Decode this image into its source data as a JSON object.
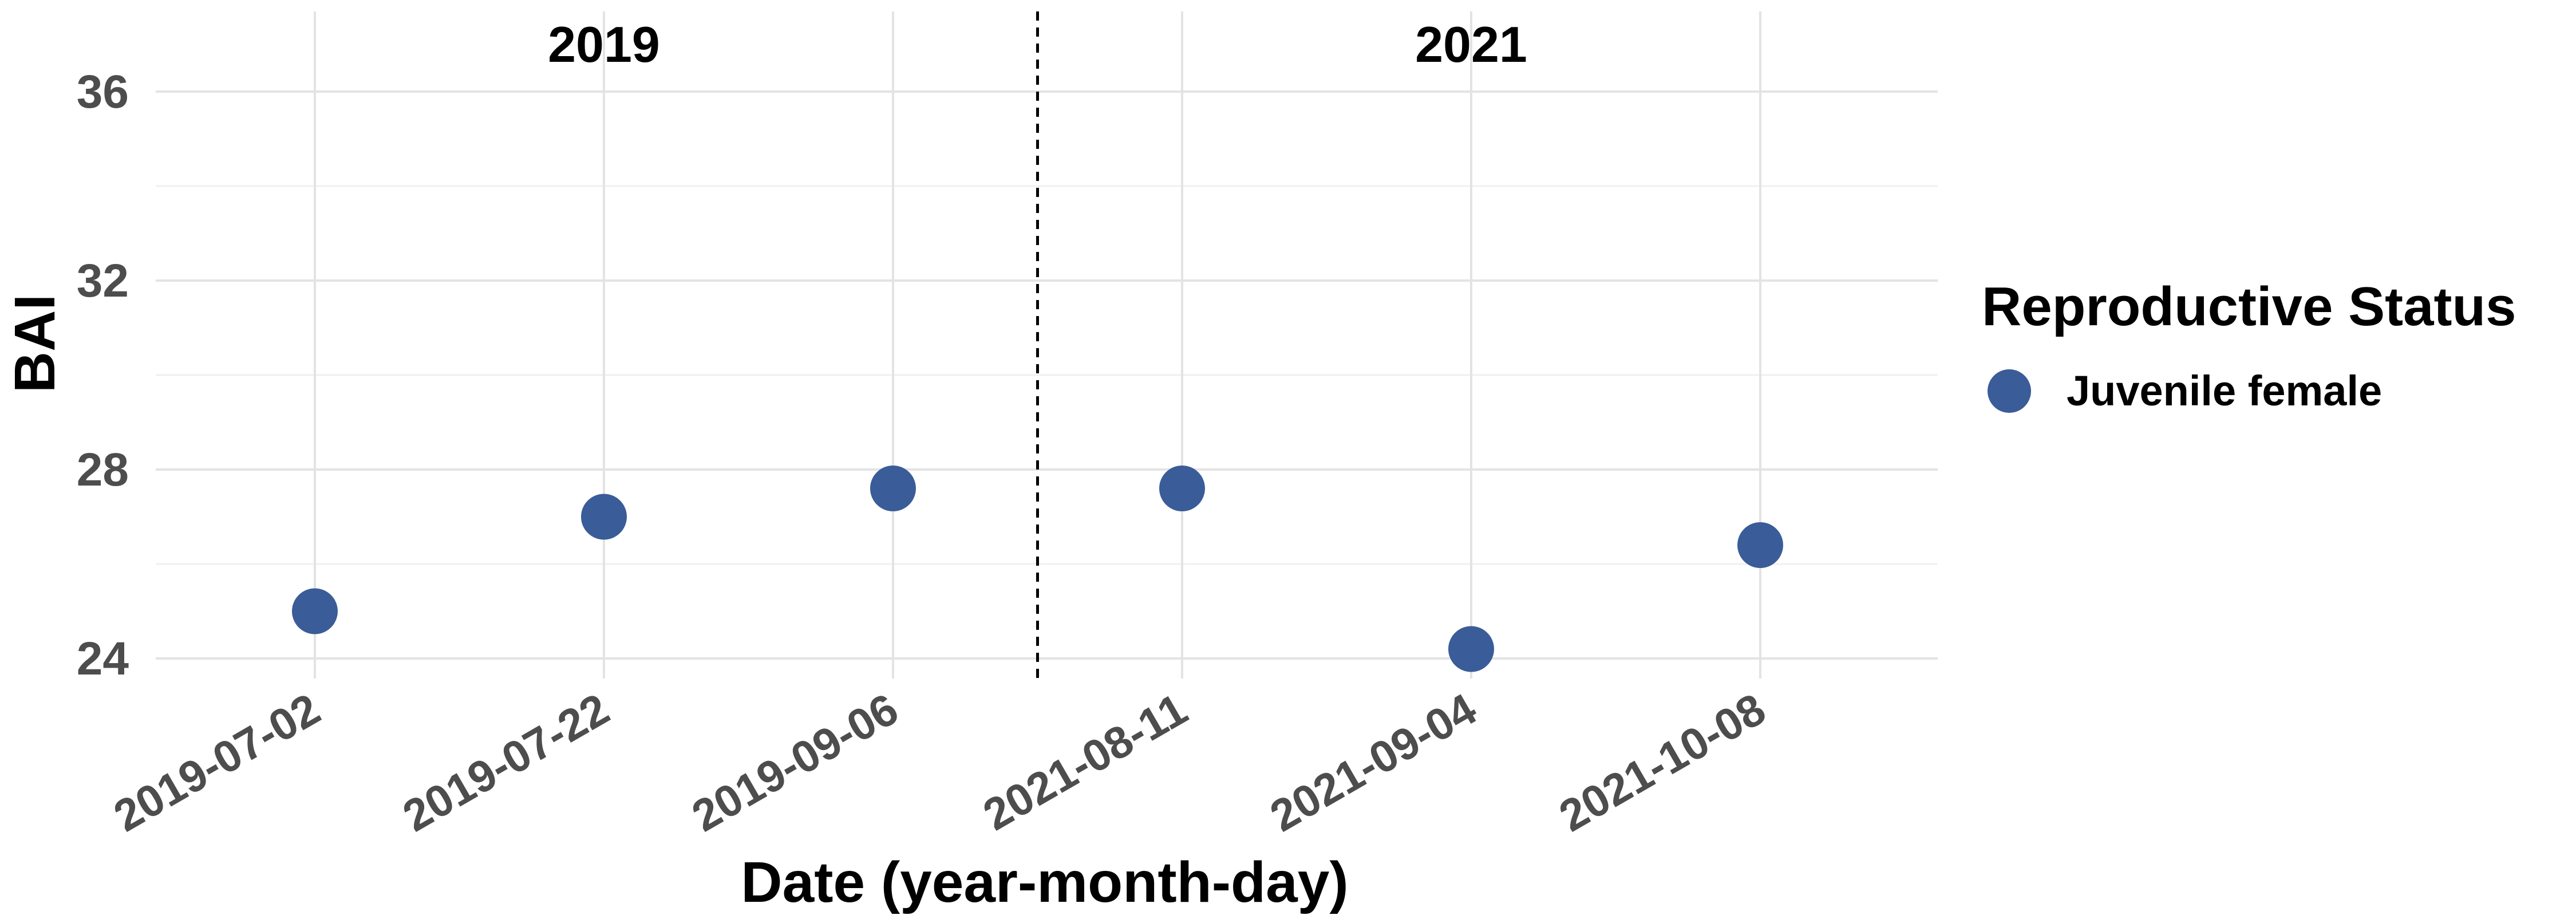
{
  "chart_data": {
    "type": "scatter",
    "title": "",
    "xlabel": "Date (year-month-day)",
    "ylabel": "BAI",
    "categories": [
      "2019-07-02",
      "2019-07-22",
      "2019-09-06",
      "2021-08-11",
      "2021-09-04",
      "2021-10-08"
    ],
    "panels": [
      "2019",
      "2021"
    ],
    "series": [
      {
        "name": "Juvenile female",
        "color": "#3a5c98",
        "values": [
          25.0,
          27.0,
          27.6,
          27.6,
          24.2,
          26.4
        ]
      }
    ],
    "ylim": [
      23.6,
      37.0
    ],
    "yticks": [
      24,
      28,
      32,
      36
    ],
    "legend": {
      "title": "Reproductive Status",
      "position": "right"
    },
    "grid": true,
    "divider": "dashed vertical line between 2019-09-06 and 2021-08-11"
  }
}
